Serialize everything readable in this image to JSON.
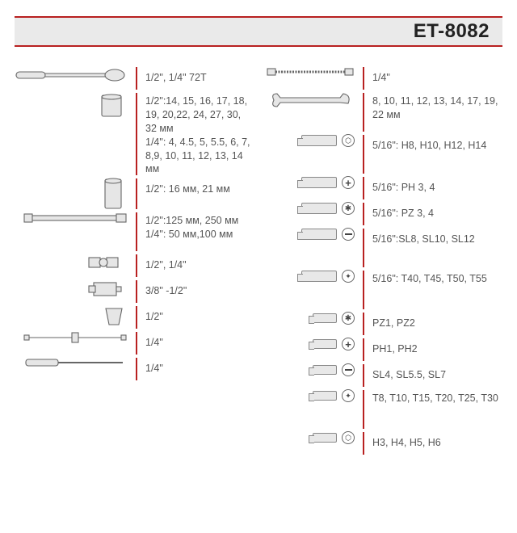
{
  "model": "ET-8082",
  "accent_color": "#b82020",
  "header_bg": "#eaeaea",
  "left": [
    {
      "icon": "ratchet",
      "spec": "1/2\", 1/4\" 72T"
    },
    {
      "icon": "socket",
      "spec": "1/2\":14, 15, 16, 17, 18, 19, 20,22, 24, 27, 30, 32 мм\n1/4\": 4, 4.5, 5, 5.5, 6, 7, 8,9, 10, 11, 12, 13, 14 мм",
      "tall": true
    },
    {
      "icon": "deepsocket",
      "spec": "1/2\": 16 мм, 21 мм"
    },
    {
      "icon": "extension",
      "spec": "1/2\":125 мм, 250 мм\n1/4\": 50 мм,100 мм",
      "tall": true
    },
    {
      "icon": "ujoint",
      "spec": "1/2\", 1/4\""
    },
    {
      "icon": "adapter",
      "spec": "3/8\" -1/2\""
    },
    {
      "icon": "coupler",
      "spec": "1/2\""
    },
    {
      "icon": "tbar",
      "spec": "1/4\""
    },
    {
      "icon": "driver",
      "spec": "1/4\""
    }
  ],
  "right": [
    {
      "icon": "flexext",
      "spec": "1/4\""
    },
    {
      "icon": "wrench",
      "spec": "8, 10, 11, 12, 13, 14, 17, 19, 22 мм",
      "tall": true
    },
    {
      "icon": "bit-hex",
      "spec": "5/16\": H8, H10, H12, H14",
      "tall": true
    },
    {
      "icon": "bit-ph",
      "spec": "5/16\": PH 3, 4"
    },
    {
      "icon": "bit-pz",
      "spec": "5/16\": PZ 3, 4"
    },
    {
      "icon": "bit-sl",
      "spec": "5/16\":SL8, SL10, SL12",
      "tall": true
    },
    {
      "icon": "bit-tx",
      "spec": "5/16\": T40, T45, T50, T55",
      "tall": true
    },
    {
      "icon": "sbit-pz",
      "spec": "PZ1, PZ2"
    },
    {
      "icon": "sbit-ph",
      "spec": "PH1, PH2"
    },
    {
      "icon": "sbit-sl",
      "spec": "SL4, SL5.5, SL7"
    },
    {
      "icon": "sbit-tx",
      "spec": "T8, T10, T15, T20, T25, T30",
      "tall": true
    },
    {
      "icon": "sbit-hx",
      "spec": "H3, H4, H5, H6"
    }
  ]
}
